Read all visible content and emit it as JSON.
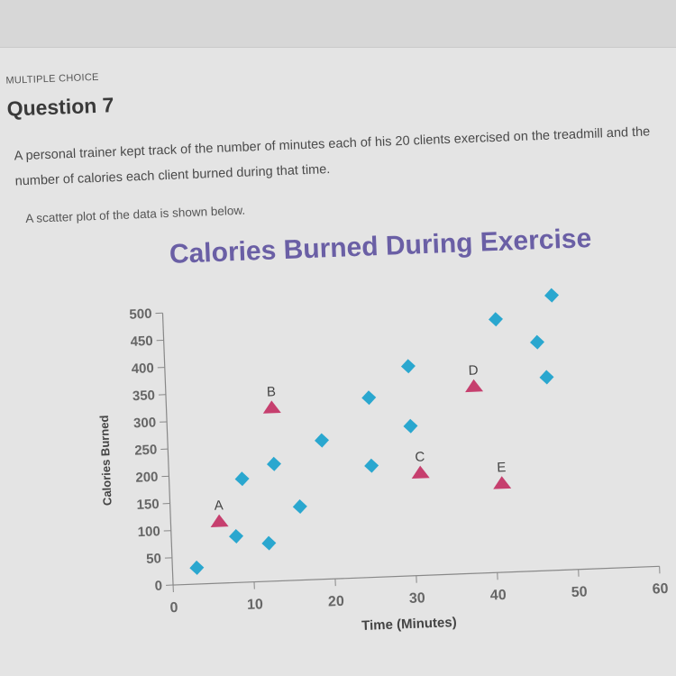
{
  "question": {
    "kicker": "MULTIPLE CHOICE",
    "title": "Question 7",
    "text": "A personal trainer kept track of the number of minutes each of his 20 clients exercised on the treadmill and the number of calories each client burned during that time.",
    "intro": "A scatter plot of the data is shown below."
  },
  "chart_data": {
    "type": "scatter",
    "title": "Calories Burned During Exercise",
    "xlabel": "Time (Minutes)",
    "ylabel": "Calories Burned",
    "xlim": [
      0,
      60
    ],
    "ylim": [
      0,
      500
    ],
    "x_ticks": [
      0,
      10,
      20,
      30,
      40,
      50,
      60
    ],
    "y_ticks": [
      0,
      50,
      100,
      150,
      200,
      250,
      300,
      350,
      400,
      450,
      500
    ],
    "grid": false,
    "legend": "none",
    "series": [
      {
        "marker": "diamond",
        "color": "#2aa7cf",
        "points": [
          {
            "x": 3,
            "y": 30
          },
          {
            "x": 8,
            "y": 85
          },
          {
            "x": 9,
            "y": 190
          },
          {
            "x": 12,
            "y": 70
          },
          {
            "x": 13,
            "y": 215
          },
          {
            "x": 16,
            "y": 135
          },
          {
            "x": 19,
            "y": 255
          },
          {
            "x": 25,
            "y": 205
          },
          {
            "x": 25,
            "y": 330
          },
          {
            "x": 30,
            "y": 275
          },
          {
            "x": 30,
            "y": 385
          },
          {
            "x": 41,
            "y": 465
          },
          {
            "x": 46,
            "y": 420
          },
          {
            "x": 47,
            "y": 355
          },
          {
            "x": 48,
            "y": 505
          }
        ]
      },
      {
        "marker": "triangle",
        "color": "#c63f6e",
        "points": [
          {
            "x": 6,
            "y": 115,
            "label": "A"
          },
          {
            "x": 13,
            "y": 320,
            "label": "B"
          },
          {
            "x": 31,
            "y": 190,
            "label": "C"
          },
          {
            "x": 38,
            "y": 345,
            "label": "D"
          },
          {
            "x": 41,
            "y": 165,
            "label": "E"
          }
        ]
      }
    ]
  }
}
